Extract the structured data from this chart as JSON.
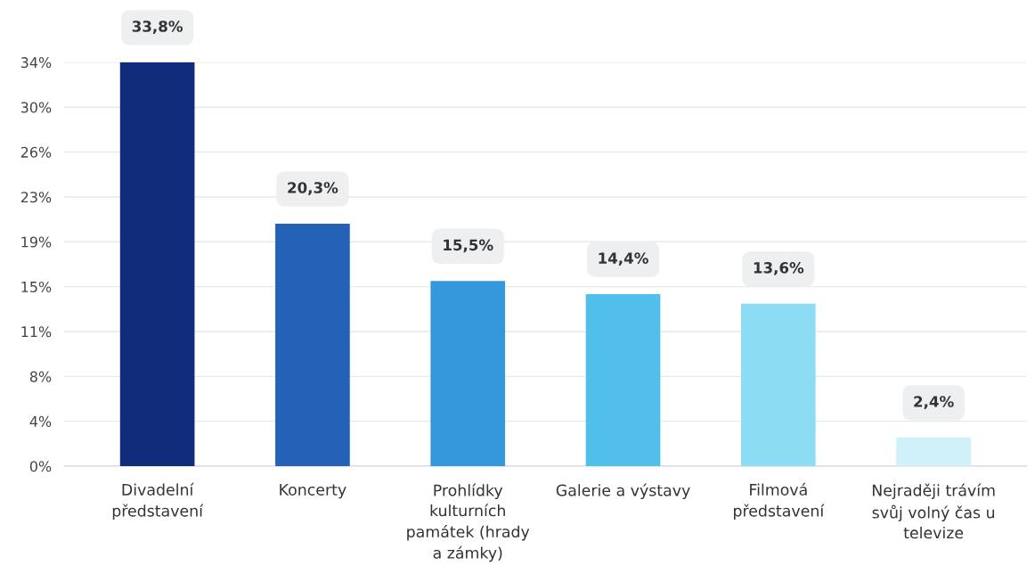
{
  "chart_data": {
    "type": "bar",
    "categories": [
      "Divadelní\npředstavení",
      "Koncerty",
      "Prohlídky\nkulturních\npamátek (hrady\na zámky)",
      "Galerie a výstavy",
      "Filmová\npředstavení",
      "Nejraději trávím\nsvůj volný čas u\ntelevize"
    ],
    "values": [
      33.8,
      20.3,
      15.5,
      14.4,
      13.6,
      2.4
    ],
    "colors": [
      "#122c7c",
      "#2362b6",
      "#3598dc",
      "#50c0eb",
      "#8cdcf4",
      "#d0f0fa"
    ],
    "value_labels": [
      "33,8%",
      "20,3%",
      "15,5%",
      "14,4%",
      "13,6%",
      "2,4%"
    ],
    "ylim": [
      0,
      33.8
    ],
    "yticks": [
      {
        "value": 0,
        "label": "0%"
      },
      {
        "value": 3.76,
        "label": "4%"
      },
      {
        "value": 7.51,
        "label": "8%"
      },
      {
        "value": 11.27,
        "label": "11%"
      },
      {
        "value": 15.02,
        "label": "15%"
      },
      {
        "value": 18.78,
        "label": "19%"
      },
      {
        "value": 22.53,
        "label": "23%"
      },
      {
        "value": 26.29,
        "label": "26%"
      },
      {
        "value": 30.04,
        "label": "30%"
      },
      {
        "value": 33.8,
        "label": "34%"
      }
    ],
    "grid": "y",
    "legend": false
  }
}
